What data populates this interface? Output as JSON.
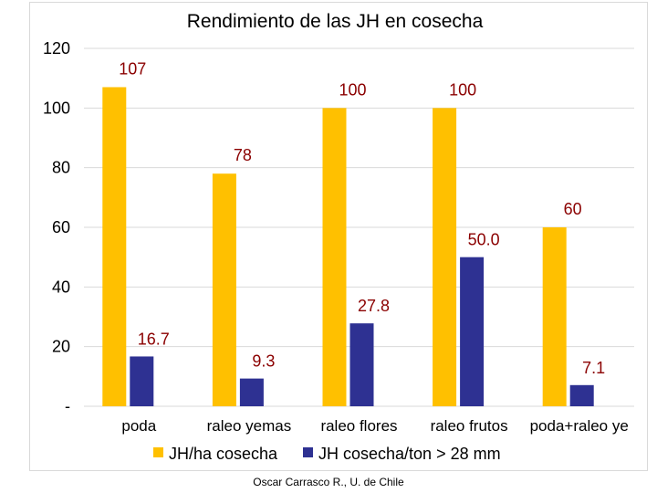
{
  "chart_data": {
    "type": "bar",
    "title": "Rendimiento de las JH en cosecha",
    "categories": [
      "poda",
      "raleo yemas",
      "raleo flores",
      "raleo frutos",
      "poda+raleo ye"
    ],
    "series": [
      {
        "name": "JH/ha cosecha",
        "color": "#ffc000",
        "values": [
          107,
          78,
          100,
          100,
          60
        ],
        "labels": [
          "107",
          "78",
          "100",
          "100",
          "60"
        ]
      },
      {
        "name": "JH cosecha/ton > 28 mm",
        "color": "#2e3192",
        "values": [
          16.7,
          9.3,
          27.8,
          50.0,
          7.1
        ],
        "labels": [
          "16.7",
          "9.3",
          "27.8",
          "50.0",
          "7.1"
        ]
      }
    ],
    "ylim": [
      0,
      120
    ],
    "yticks": [
      0,
      20,
      40,
      60,
      80,
      100,
      120
    ],
    "ytick_labels": [
      "-",
      "20",
      "40",
      "60",
      "80",
      "100",
      "120"
    ],
    "grid": true,
    "legend_position": "bottom",
    "label_color": "#8b0000"
  },
  "footer": {
    "credit": "Oscar Carrasco R., U. de Chile"
  }
}
